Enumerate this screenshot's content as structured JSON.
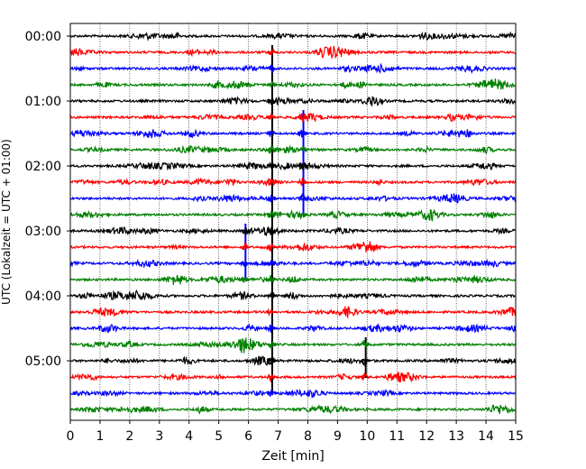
{
  "chart_data": {
    "type": "line",
    "title": "",
    "xlabel": "Zeit  [min]",
    "ylabel": "UTC (Lokalzeit = UTC + 01:00)",
    "xlim": [
      0,
      15
    ],
    "x_ticks": [
      "0",
      "1",
      "2",
      "3",
      "4",
      "5",
      "6",
      "7",
      "8",
      "9",
      "10",
      "11",
      "12",
      "13",
      "14",
      "15"
    ],
    "y_tick_labels": [
      "00:00",
      "01:00",
      "02:00",
      "03:00",
      "04:00",
      "05:00"
    ],
    "y_tick_trace_index": [
      0,
      4,
      8,
      12,
      16,
      20
    ],
    "grid_x": true,
    "trace_interval_min": 15,
    "trace_colors": [
      "#000000",
      "#ff0000",
      "#0000ff",
      "#008000"
    ],
    "trace_count": 24,
    "events": [
      {
        "trace_start": 5,
        "trace_end": 11,
        "time_min": 7.85,
        "color": "#0000ff"
      },
      {
        "trace_start": 1,
        "trace_end": 22,
        "time_min": 6.8,
        "color": "#000000"
      },
      {
        "trace_start": 12,
        "trace_end": 15,
        "time_min": 5.9,
        "color": "#0000ff"
      },
      {
        "trace_start": 19,
        "trace_end": 21,
        "time_min": 9.95,
        "color": "#000000"
      }
    ]
  }
}
